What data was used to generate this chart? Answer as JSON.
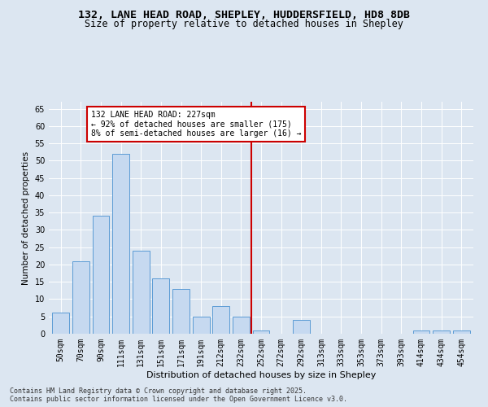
{
  "title": "132, LANE HEAD ROAD, SHEPLEY, HUDDERSFIELD, HD8 8DB",
  "subtitle": "Size of property relative to detached houses in Shepley",
  "xlabel": "Distribution of detached houses by size in Shepley",
  "ylabel": "Number of detached properties",
  "categories": [
    "50sqm",
    "70sqm",
    "90sqm",
    "111sqm",
    "131sqm",
    "151sqm",
    "171sqm",
    "191sqm",
    "212sqm",
    "232sqm",
    "252sqm",
    "272sqm",
    "292sqm",
    "313sqm",
    "333sqm",
    "353sqm",
    "373sqm",
    "393sqm",
    "414sqm",
    "434sqm",
    "454sqm"
  ],
  "values": [
    6,
    21,
    34,
    52,
    24,
    16,
    13,
    5,
    8,
    5,
    1,
    0,
    4,
    0,
    0,
    0,
    0,
    0,
    1,
    1,
    1
  ],
  "bar_color": "#c6d9f0",
  "bar_edge_color": "#5b9bd5",
  "vline_x": 9.5,
  "vline_color": "#cc0000",
  "annotation_title": "132 LANE HEAD ROAD: 227sqm",
  "annotation_line1": "← 92% of detached houses are smaller (175)",
  "annotation_line2": "8% of semi-detached houses are larger (16) →",
  "annotation_box_color": "#cc0000",
  "ylim": [
    0,
    67
  ],
  "yticks": [
    0,
    5,
    10,
    15,
    20,
    25,
    30,
    35,
    40,
    45,
    50,
    55,
    60,
    65
  ],
  "footer_line1": "Contains HM Land Registry data © Crown copyright and database right 2025.",
  "footer_line2": "Contains public sector information licensed under the Open Government Licence v3.0.",
  "bg_color": "#dce6f1",
  "plot_bg_color": "#dce6f1",
  "title_fontsize": 9.5,
  "subtitle_fontsize": 8.5,
  "xlabel_fontsize": 8,
  "ylabel_fontsize": 7.5,
  "tick_fontsize": 7,
  "annotation_fontsize": 7,
  "footer_fontsize": 6
}
